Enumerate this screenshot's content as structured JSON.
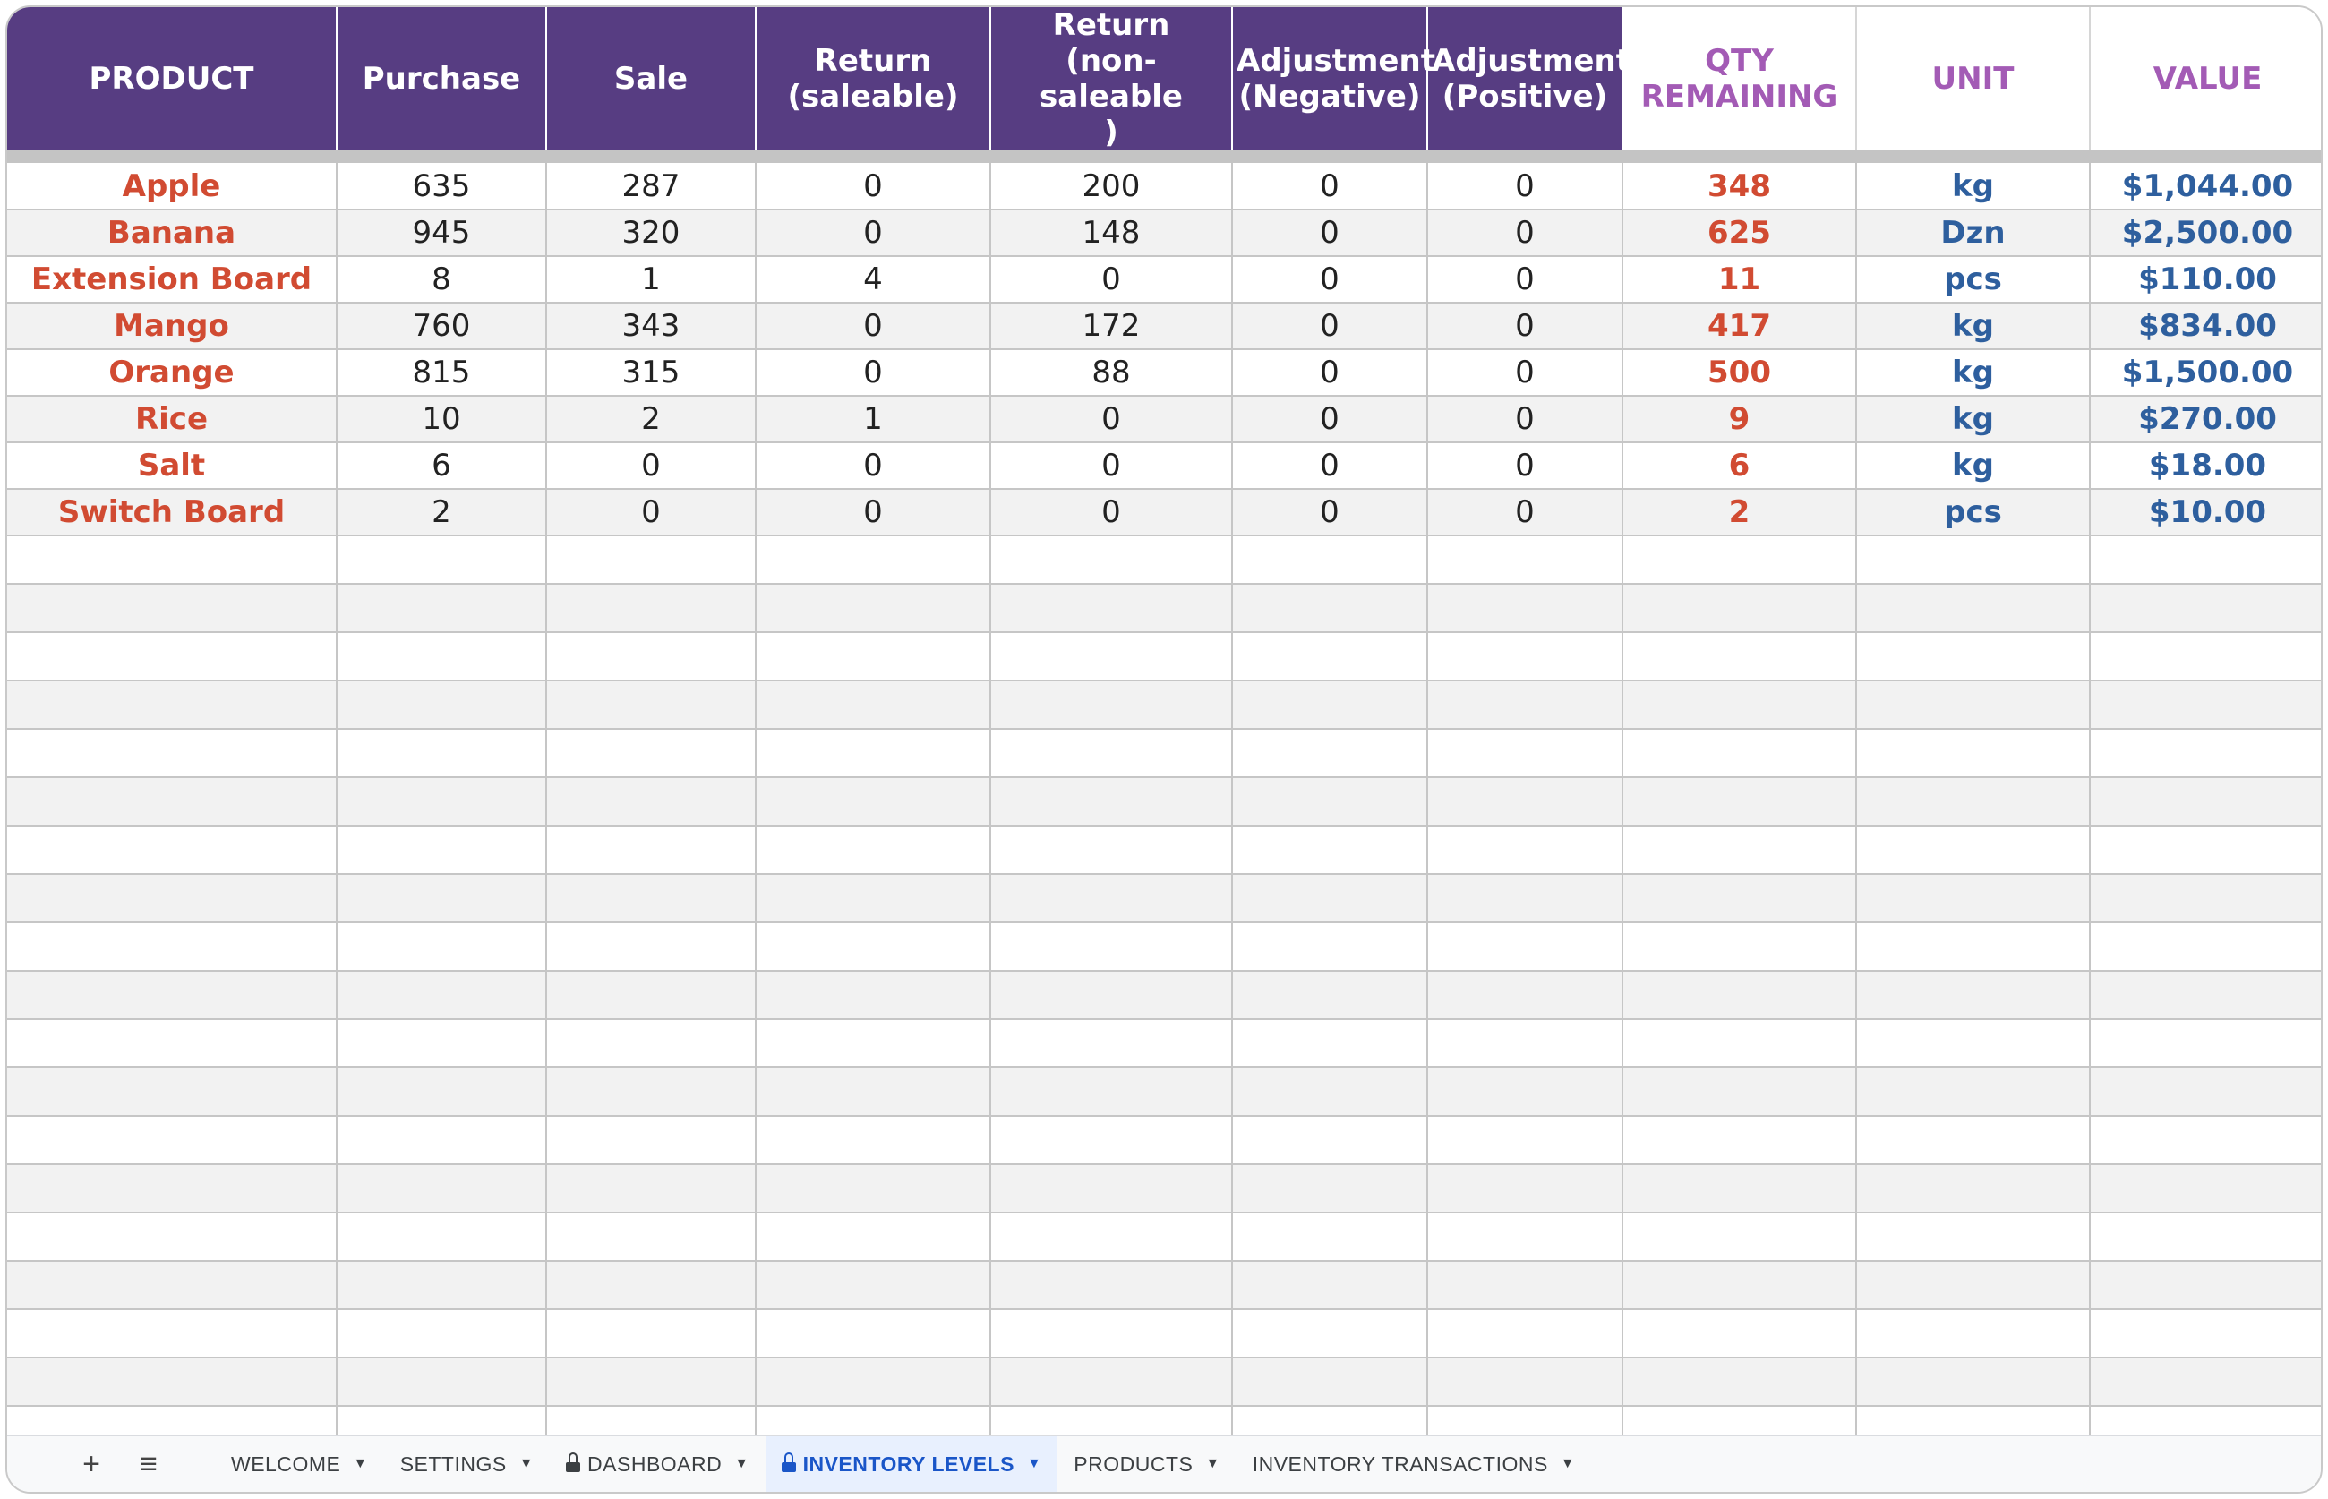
{
  "colors": {
    "header_purple": "#573d82",
    "header_light_text": "#a35bb5",
    "product_red": "#d14b32",
    "value_blue": "#2e5f9e",
    "active_tab": "#1a56c8"
  },
  "table": {
    "headers": [
      "PRODUCT",
      "Purchase",
      "Sale",
      "Return\n(saleable)",
      "Return\n(non-saleable\n)",
      "Adjustment\n(Negative)",
      "Adjustment\n(Positive)",
      "QTY\nREMAINING",
      "UNIT",
      "VALUE"
    ],
    "rows": [
      {
        "product": "Apple",
        "purchase": "635",
        "sale": "287",
        "return_saleable": "0",
        "return_non_saleable": "200",
        "adj_negative": "0",
        "adj_positive": "0",
        "qty_remaining": "348",
        "unit": "kg",
        "value": "$1,044.00"
      },
      {
        "product": "Banana",
        "purchase": "945",
        "sale": "320",
        "return_saleable": "0",
        "return_non_saleable": "148",
        "adj_negative": "0",
        "adj_positive": "0",
        "qty_remaining": "625",
        "unit": "Dzn",
        "value": "$2,500.00"
      },
      {
        "product": "Extension Board",
        "purchase": "8",
        "sale": "1",
        "return_saleable": "4",
        "return_non_saleable": "0",
        "adj_negative": "0",
        "adj_positive": "0",
        "qty_remaining": "11",
        "unit": "pcs",
        "value": "$110.00"
      },
      {
        "product": "Mango",
        "purchase": "760",
        "sale": "343",
        "return_saleable": "0",
        "return_non_saleable": "172",
        "adj_negative": "0",
        "adj_positive": "0",
        "qty_remaining": "417",
        "unit": "kg",
        "value": "$834.00"
      },
      {
        "product": "Orange",
        "purchase": "815",
        "sale": "315",
        "return_saleable": "0",
        "return_non_saleable": "88",
        "adj_negative": "0",
        "adj_positive": "0",
        "qty_remaining": "500",
        "unit": "kg",
        "value": "$1,500.00"
      },
      {
        "product": "Rice",
        "purchase": "10",
        "sale": "2",
        "return_saleable": "1",
        "return_non_saleable": "0",
        "adj_negative": "0",
        "adj_positive": "0",
        "qty_remaining": "9",
        "unit": "kg",
        "value": "$270.00"
      },
      {
        "product": "Salt",
        "purchase": "6",
        "sale": "0",
        "return_saleable": "0",
        "return_non_saleable": "0",
        "adj_negative": "0",
        "adj_positive": "0",
        "qty_remaining": "6",
        "unit": "kg",
        "value": "$18.00"
      },
      {
        "product": "Switch Board",
        "purchase": "2",
        "sale": "0",
        "return_saleable": "0",
        "return_non_saleable": "0",
        "adj_negative": "0",
        "adj_positive": "0",
        "qty_remaining": "2",
        "unit": "pcs",
        "value": "$10.00"
      }
    ]
  },
  "tabbar": {
    "add_icon": "plus-icon",
    "menu_icon": "hamburger-icon",
    "tabs": [
      {
        "label": "WELCOME",
        "locked": false,
        "active": false
      },
      {
        "label": "SETTINGS",
        "locked": false,
        "active": false
      },
      {
        "label": "DASHBOARD",
        "locked": true,
        "active": false
      },
      {
        "label": "INVENTORY LEVELS",
        "locked": true,
        "active": true
      },
      {
        "label": "PRODUCTS",
        "locked": false,
        "active": false
      },
      {
        "label": "INVENTORY TRANSACTIONS",
        "locked": false,
        "active": false
      }
    ]
  }
}
